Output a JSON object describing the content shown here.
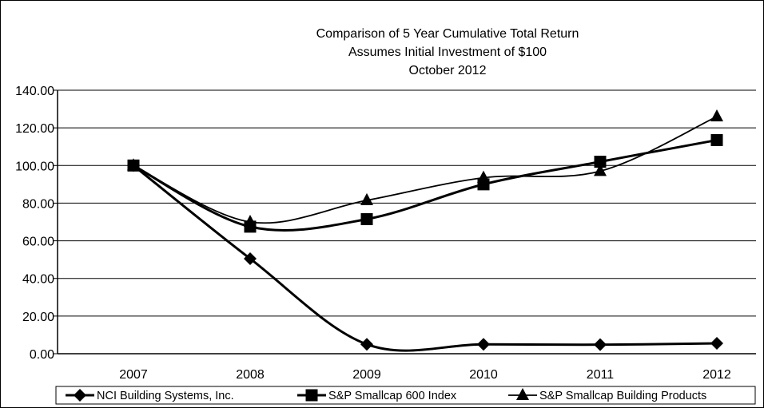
{
  "chart_data": {
    "type": "line",
    "title": [
      "Comparison of 5 Year Cumulative Total Return",
      "Assumes Initial Investment of $100",
      "October 2012"
    ],
    "xlabel": "",
    "ylabel": "",
    "categories": [
      "2007",
      "2008",
      "2009",
      "2010",
      "2011",
      "2012"
    ],
    "ylim": [
      0,
      140
    ],
    "yticks": [
      "0.00",
      "20.00",
      "40.00",
      "60.00",
      "80.00",
      "100.00",
      "120.00",
      "140.00"
    ],
    "grid": true,
    "legend_position": "bottom",
    "series": [
      {
        "name": "NCI Building Systems, Inc.",
        "marker": "diamond",
        "values": [
          100,
          50.5,
          5,
          5,
          4.8,
          5.5
        ]
      },
      {
        "name": "S&P Smallcap 600 Index",
        "marker": "square",
        "values": [
          100,
          67.5,
          71.5,
          90,
          102,
          113.5
        ]
      },
      {
        "name": "S&P Smallcap Building Products",
        "marker": "triangle",
        "values": [
          100,
          70,
          81.5,
          93.5,
          97,
          126
        ]
      }
    ]
  }
}
